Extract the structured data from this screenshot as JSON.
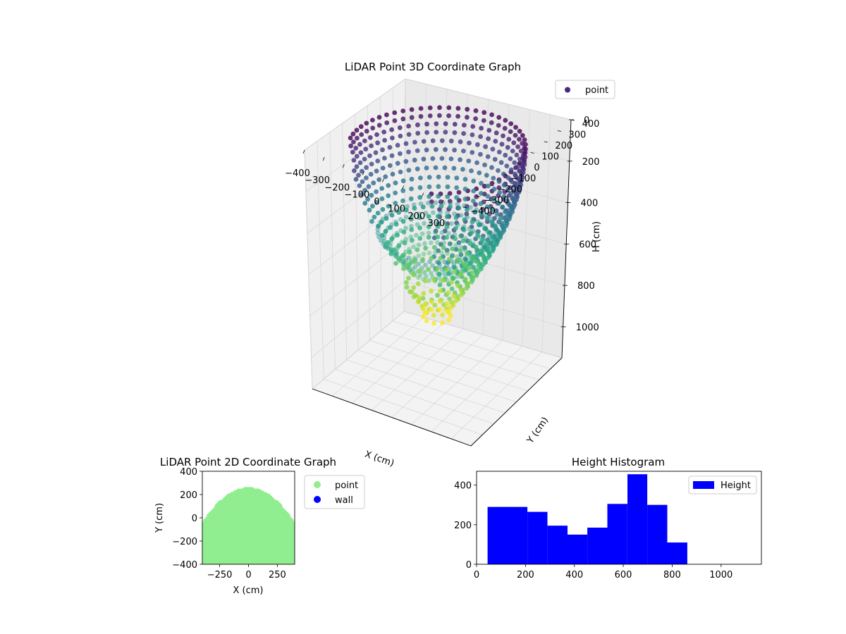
{
  "chart_data": [
    {
      "type": "scatter",
      "title": "LiDAR Point 3D Coordinate Graph",
      "xlabel": "X (cm)",
      "ylabel": "Y (cm)",
      "zlabel": "H (cm)",
      "xticks": [
        "−400",
        "−300",
        "−200",
        "−100",
        "0",
        "100",
        "200",
        "300"
      ],
      "yticks": [
        "−400",
        "−300",
        "−200",
        "−100",
        "0",
        "100",
        "200",
        "300",
        "400"
      ],
      "zticks": [
        "0",
        "200",
        "400",
        "600",
        "800",
        "1000"
      ],
      "xlim": [
        -400,
        400
      ],
      "ylim": [
        -400,
        400
      ],
      "zlim": [
        0,
        1150
      ],
      "z_inverted": true,
      "colormap": "viridis",
      "legend": {
        "location": "upper-right",
        "entries": [
          {
            "label": "point",
            "color": "#482878"
          }
        ]
      },
      "point_cloud": {
        "shape": "dome",
        "radius_cm": 370,
        "height_range_cm": [
          50,
          860
        ],
        "open_side_azimuth_deg": [
          200,
          300
        ]
      }
    },
    {
      "type": "scatter",
      "title": "LiDAR Point 2D Coordinate Graph",
      "xlabel": "X (cm)",
      "ylabel": "Y (cm)",
      "xticks": [
        "−250",
        "0",
        "250"
      ],
      "yticks": [
        "400",
        "200",
        "0",
        "−200",
        "−400"
      ],
      "xlim": [
        -400,
        400
      ],
      "ylim": [
        -400,
        400
      ],
      "legend": {
        "location": "outside-right",
        "entries": [
          {
            "label": "point",
            "color": "#90ee90"
          },
          {
            "label": "wall",
            "color": "#0000ff"
          }
        ]
      },
      "point_cloud": {
        "shape": "disc",
        "radius_cm": 400,
        "y_max_cm": 240,
        "color": "#90ee90"
      }
    },
    {
      "type": "bar",
      "title": "Height Histogram",
      "xlabel": "",
      "ylabel": "",
      "xticks": [
        "0",
        "200",
        "400",
        "600",
        "800",
        "1000"
      ],
      "yticks": [
        "0",
        "200",
        "400"
      ],
      "xlim": [
        0,
        1165
      ],
      "ylim": [
        0,
        470
      ],
      "color": "#0000ff",
      "legend": {
        "location": "upper-right",
        "entries": [
          {
            "label": "Height",
            "color": "#0000ff"
          }
        ]
      },
      "bin_edges": [
        45,
        127,
        208,
        290,
        372,
        453,
        535,
        617,
        698,
        780,
        862
      ],
      "values": [
        290,
        290,
        265,
        195,
        150,
        185,
        305,
        455,
        300,
        110
      ]
    }
  ]
}
